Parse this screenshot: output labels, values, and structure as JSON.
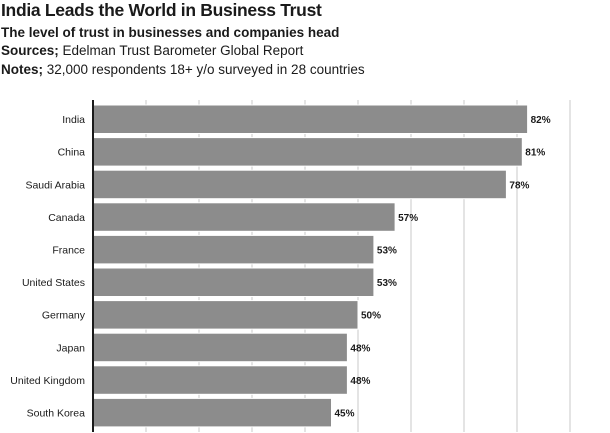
{
  "header": {
    "title": "India Leads the World in Business Trust",
    "subtitle": "The level of trust in businesses and companies head",
    "sources_label": "Sources;",
    "sources_text": " Edelman Trust Barometer Global Report",
    "notes_label": "Notes;",
    "notes_text": " 32,000 respondents 18+ y/o surveyed in 28 countries"
  },
  "colors": {
    "bar": "#8c8c8c",
    "bar_stroke": "#ffffff",
    "grid": "#c8c8c8",
    "axis": "#1a1a1a"
  },
  "chart_data": {
    "type": "bar",
    "orientation": "horizontal",
    "title": "India Leads the World in Business Trust",
    "xlabel": "",
    "ylabel": "",
    "xlim": [
      0,
      90
    ],
    "grid": true,
    "categories": [
      "India",
      "China",
      "Saudi Arabia",
      "Canada",
      "France",
      "United States",
      "Germany",
      "Japan",
      "United Kingdom",
      "South Korea"
    ],
    "values": [
      82,
      81,
      78,
      57,
      53,
      53,
      50,
      48,
      48,
      45
    ],
    "data_labels": [
      "82%",
      "81%",
      "78%",
      "57%",
      "53%",
      "53%",
      "50%",
      "48%",
      "48%",
      "45%"
    ]
  }
}
